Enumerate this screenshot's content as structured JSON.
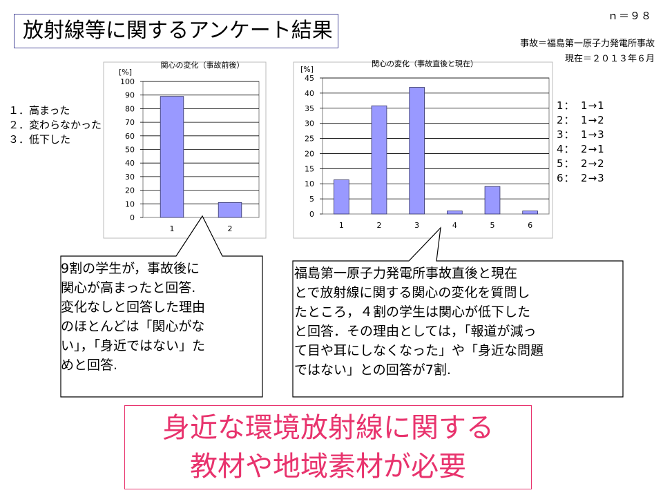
{
  "title": "放射線等に関するアンケート結果",
  "n_label": "ｎ＝９８",
  "accident_note": "事故＝福島第一原子力発電所事故",
  "current_note": "現在＝２０１３年６月",
  "left_legend": [
    "１．高まった",
    "２．変わらなかった",
    "３．低下した"
  ],
  "right_legend": [
    "1：　1→1",
    "2：　1→2",
    "3：　1→3",
    "4：　2→1",
    "5：　2→2",
    "6：　2→3"
  ],
  "callout_left": [
    "9割の学生が，事故後に",
    "関心が高まったと回答.",
    "変化なしと回答した理由",
    "のほとんどは「関心がな",
    "い」，「身近ではない」た",
    "めと回答."
  ],
  "callout_right": [
    "福島第一原子力発電所事故直後と現在",
    "とで放射線に関する関心の変化を質問し",
    "たところ，４割の学生は関心が低下した",
    "と回答．その理由としては，「報道が減っ",
    "て目や耳にしなくなった」や「身近な問題",
    "ではない」との回答が7割."
  ],
  "conclusion": [
    "身近な環境放射線に関する",
    "教材や地域素材が必要"
  ],
  "colors": {
    "bar_fill": "#9999ff",
    "bar_stroke": "#333366",
    "accent": "#e8336d",
    "title_border": "#4a4a9a"
  },
  "chart_data": [
    {
      "type": "bar",
      "title": "関心の変化（事故前後）",
      "unit_label": "[%]",
      "categories": [
        "1",
        "2"
      ],
      "values": [
        89,
        11
      ],
      "ylim": [
        0,
        100
      ],
      "yticks": [
        0,
        10,
        20,
        30,
        40,
        50,
        60,
        70,
        80,
        90,
        100
      ],
      "grid": true
    },
    {
      "type": "bar",
      "title": "関心の変化（事故直後と現在）",
      "unit_label": "[%]",
      "categories": [
        "1",
        "2",
        "3",
        "4",
        "5",
        "6"
      ],
      "values": [
        11.3,
        35.8,
        41.9,
        1.0,
        9.1,
        1.0
      ],
      "ylim": [
        0,
        45
      ],
      "yticks": [
        0,
        5,
        10,
        15,
        20,
        25,
        30,
        35,
        40,
        45
      ],
      "grid": true
    }
  ]
}
